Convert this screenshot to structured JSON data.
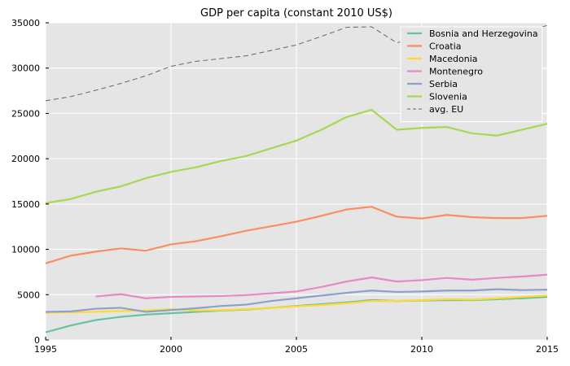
{
  "chart_data": {
    "type": "line",
    "title": "GDP per capita (constant 2010 US$)",
    "xlabel": "",
    "ylabel": "",
    "xlim": [
      1995,
      2015
    ],
    "ylim": [
      0,
      35000
    ],
    "x_ticks": [
      1995,
      2000,
      2005,
      2010,
      2015
    ],
    "y_ticks": [
      0,
      5000,
      10000,
      15000,
      20000,
      25000,
      30000,
      35000
    ],
    "grid": true,
    "legend_position": "top-right",
    "x": [
      1995,
      1996,
      1997,
      1998,
      1999,
      2000,
      2001,
      2002,
      2003,
      2004,
      2005,
      2006,
      2007,
      2008,
      2009,
      2010,
      2011,
      2012,
      2013,
      2014,
      2015
    ],
    "series": [
      {
        "name": "Bosnia and Herzegovina",
        "color": "#66c2a5",
        "style": "solid",
        "values": [
          850,
          1600,
          2200,
          2550,
          2800,
          2950,
          3100,
          3250,
          3350,
          3550,
          3750,
          3950,
          4150,
          4400,
          4300,
          4350,
          4400,
          4400,
          4500,
          4600,
          4750
        ]
      },
      {
        "name": "Croatia",
        "color": "#fc8d62",
        "style": "solid",
        "values": [
          8450,
          9300,
          9750,
          10100,
          9850,
          10550,
          10900,
          11450,
          12050,
          12550,
          13050,
          13700,
          14400,
          14700,
          13600,
          13400,
          13800,
          13550,
          13450,
          13450,
          13700
        ]
      },
      {
        "name": "Macedonia",
        "color": "#ffd92f",
        "style": "solid",
        "values": [
          3000,
          3050,
          3100,
          3200,
          3250,
          3400,
          3250,
          3300,
          3400,
          3550,
          3700,
          3850,
          4050,
          4300,
          4300,
          4400,
          4500,
          4450,
          4600,
          4750,
          4900
        ]
      },
      {
        "name": "Montenegro",
        "color": "#e78ac3",
        "style": "solid",
        "values": [
          null,
          null,
          4800,
          5050,
          4600,
          4750,
          4800,
          4850,
          4950,
          5150,
          5350,
          5850,
          6450,
          6900,
          6450,
          6600,
          6850,
          6650,
          6850,
          7000,
          7200
        ]
      },
      {
        "name": "Serbia",
        "color": "#8da0cb",
        "style": "solid",
        "values": [
          3100,
          3150,
          3450,
          3550,
          3100,
          3300,
          3500,
          3750,
          3900,
          4300,
          4600,
          4900,
          5200,
          5450,
          5300,
          5350,
          5450,
          5450,
          5600,
          5500,
          5550
        ]
      },
      {
        "name": "Slovenia",
        "color": "#a6d854",
        "style": "solid",
        "values": [
          15100,
          15550,
          16350,
          16950,
          17850,
          18550,
          19050,
          19750,
          20300,
          21150,
          22000,
          23200,
          24600,
          25400,
          23200,
          23400,
          23500,
          22800,
          22550,
          23200,
          23850
        ]
      },
      {
        "name": "avg. EU",
        "color": "#666666",
        "style": "dashed",
        "values": [
          26400,
          26850,
          27550,
          28300,
          29150,
          30200,
          30750,
          31050,
          31350,
          31950,
          32550,
          33500,
          34500,
          34550,
          32800,
          33400,
          33800,
          33600,
          33500,
          34000,
          34700
        ]
      }
    ]
  }
}
